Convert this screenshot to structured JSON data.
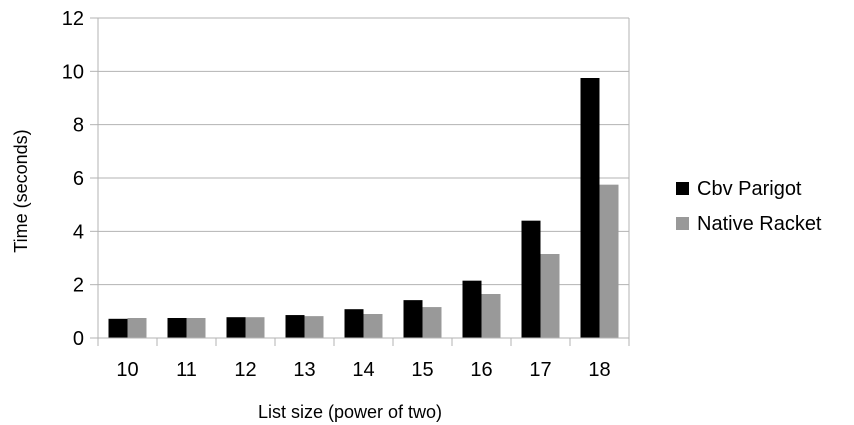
{
  "chart_data": {
    "type": "bar",
    "title": "",
    "xlabel": "List size (power of two)",
    "ylabel": "Time (seconds)",
    "ylim": [
      0,
      12
    ],
    "ytick_step": 2,
    "yticks": [
      "0",
      "2",
      "4",
      "6",
      "8",
      "10",
      "12"
    ],
    "grid": true,
    "legend_position": "right",
    "categories": [
      "10",
      "11",
      "12",
      "13",
      "14",
      "15",
      "16",
      "17",
      "18"
    ],
    "series": [
      {
        "name": "Cbv Parigot",
        "color": "#000000",
        "values": [
          0.72,
          0.75,
          0.78,
          0.86,
          1.08,
          1.42,
          2.15,
          4.4,
          9.75
        ]
      },
      {
        "name": "Native Racket",
        "color": "#999999",
        "values": [
          0.75,
          0.75,
          0.78,
          0.82,
          0.9,
          1.16,
          1.65,
          3.15,
          5.75
        ]
      }
    ]
  }
}
